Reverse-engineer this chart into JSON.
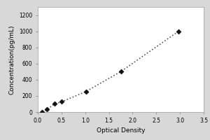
{
  "x_data": [
    0.094,
    0.197,
    0.35,
    0.502,
    1.012,
    1.751,
    2.971
  ],
  "y_data": [
    0,
    31,
    100,
    126,
    252,
    500,
    1000
  ],
  "xlabel": "Optical Density",
  "ylabel": "Concentration(pg/mL)",
  "xlim": [
    0,
    3.5
  ],
  "ylim": [
    0,
    1300
  ],
  "xticks": [
    0,
    0.5,
    1,
    1.5,
    2,
    2.5,
    3,
    3.5
  ],
  "yticks": [
    0,
    200,
    400,
    600,
    800,
    1000,
    1200
  ],
  "line_color": "#555555",
  "marker_color": "#111111",
  "background_color": "#d8d8d8",
  "plot_bg_color": "#ffffff",
  "line_style": "dotted",
  "marker_style": "D",
  "marker_size": 3.5,
  "line_width": 1.2,
  "label_fontsize": 6.5,
  "tick_fontsize": 5.5
}
